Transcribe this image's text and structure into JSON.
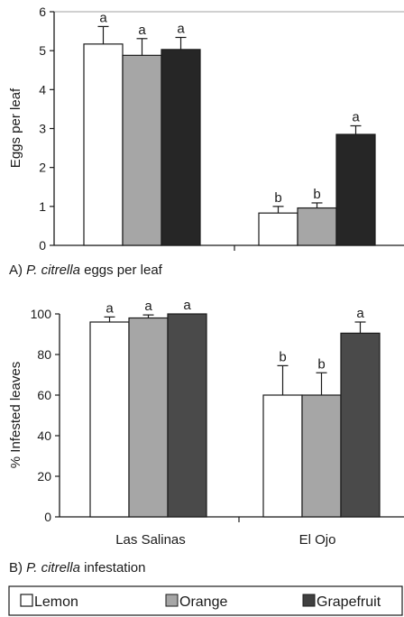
{
  "colors": {
    "lemon": "#ffffff",
    "orange": "#a6a6a6",
    "grapefruit_a": "#262626",
    "grapefruit_b": "#4a4a4a",
    "axis": "#1a1a1a",
    "frame": "#a0a0a0"
  },
  "chart_data": [
    {
      "type": "bar",
      "caption": {
        "prefix": "A) ",
        "species": "P. citrella",
        "rest": " eggs per leaf"
      },
      "ylabel": "Eggs per leaf",
      "ylim": [
        0,
        6
      ],
      "yticks": [
        "0",
        "1",
        "2",
        "3",
        "4",
        "5",
        "6"
      ],
      "categories": [
        "",
        ""
      ],
      "series": [
        {
          "name": "Lemon",
          "values": [
            5.17,
            0.83
          ],
          "errors": [
            0.45,
            0.17
          ],
          "letters": [
            "a",
            "b"
          ]
        },
        {
          "name": "Orange",
          "values": [
            4.88,
            0.96
          ],
          "errors": [
            0.43,
            0.13
          ],
          "letters": [
            "a",
            "b"
          ]
        },
        {
          "name": "Grapefruit",
          "values": [
            5.03,
            2.85
          ],
          "errors": [
            0.31,
            0.22
          ],
          "letters": [
            "a",
            "a"
          ]
        }
      ]
    },
    {
      "type": "bar",
      "caption": {
        "prefix": "B) ",
        "species": "P. citrella",
        "rest": " infestation"
      },
      "ylabel": "% Infested leaves",
      "ylim": [
        0,
        100
      ],
      "yticks": [
        "0",
        "20",
        "40",
        "60",
        "80",
        "100"
      ],
      "categories": [
        "Las Salinas",
        "El Ojo"
      ],
      "series": [
        {
          "name": "Lemon",
          "values": [
            96,
            60
          ],
          "errors": [
            2.5,
            14.5
          ],
          "letters": [
            "a",
            "b"
          ]
        },
        {
          "name": "Orange",
          "values": [
            98,
            60
          ],
          "errors": [
            1.5,
            11
          ],
          "letters": [
            "a",
            "b"
          ]
        },
        {
          "name": "Grapefruit",
          "values": [
            100,
            90.5
          ],
          "errors": [
            0,
            5.5
          ],
          "letters": [
            "a",
            "a"
          ]
        }
      ]
    }
  ],
  "legend": {
    "items": [
      "Lemon",
      "Orange",
      "Grapefruit"
    ]
  }
}
